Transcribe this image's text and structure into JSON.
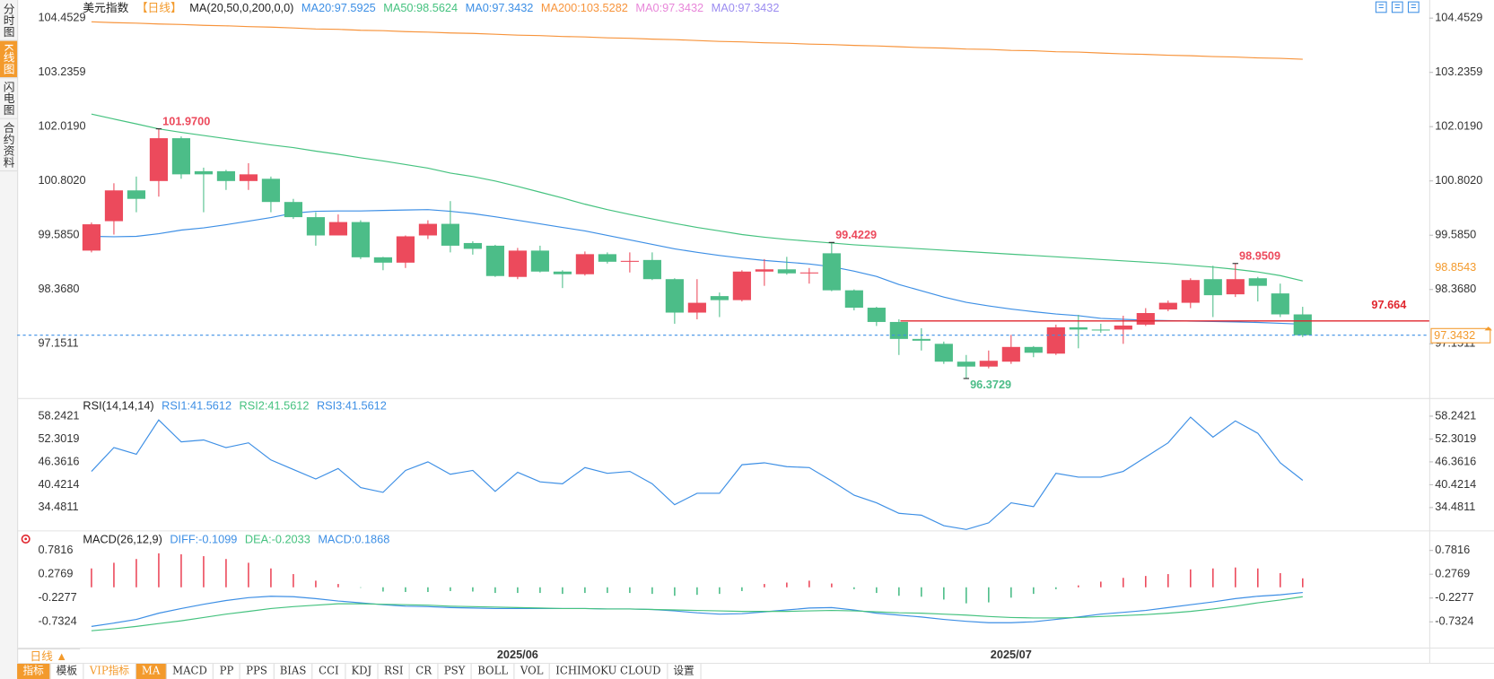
{
  "sidebar_tabs": [
    "分时图",
    "K线图",
    "闪电图",
    "合约资料"
  ],
  "period": "日线 ▲",
  "toolbar": [
    "指标",
    "模板",
    "VIP指标",
    "MA",
    "MACD",
    "PP",
    "PPS",
    "BIAS",
    "CCI",
    "KDJ",
    "RSI",
    "CR",
    "PSY",
    "BOLL",
    "VOL",
    "ICHIMOKU CLOUD",
    "设置"
  ],
  "chart_data": [
    {
      "type": "candlestick",
      "title": "美元指数",
      "period": "【日线】",
      "indicator": "MA(20,50,0,200,0,0)",
      "up_color": "#ec4a5c",
      "down_color": "#4cbd88",
      "categories": [
        null,
        null,
        null,
        null,
        null,
        null,
        null,
        null,
        null,
        null,
        null,
        null,
        null,
        null,
        null,
        null,
        null,
        null,
        null,
        "2025/06",
        null,
        null,
        null,
        null,
        null,
        null,
        null,
        null,
        null,
        null,
        null,
        null,
        null,
        null,
        null,
        null,
        null,
        null,
        null,
        null,
        null,
        "2025/07",
        null,
        null,
        null,
        null,
        null,
        null,
        null,
        null,
        null,
        null,
        null,
        null,
        null
      ],
      "ohlc": {
        "open": [
          99.24,
          99.9,
          100.59,
          100.8,
          101.76,
          101.02,
          101.02,
          100.8,
          100.85,
          100.33,
          99.99,
          99.58,
          99.88,
          99.09,
          98.97,
          99.58,
          99.84,
          99.41,
          99.35,
          98.65,
          99.24,
          98.77,
          98.71,
          99.16,
          98.99,
          99.03,
          98.6,
          97.85,
          98.22,
          98.13,
          98.77,
          98.82,
          98.73,
          99.18,
          98.35,
          97.96,
          97.64,
          97.26,
          97.15,
          96.75,
          96.64,
          96.75,
          97.08,
          96.93,
          97.52,
          97.47,
          97.47,
          97.58,
          97.92,
          98.07,
          98.6,
          98.26,
          98.62,
          98.28,
          97.81
        ],
        "high": [
          99.87,
          100.75,
          100.9,
          101.97,
          101.8,
          101.1,
          101.05,
          101.2,
          100.9,
          100.4,
          100.1,
          100.05,
          99.92,
          99.1,
          99.58,
          99.92,
          100.35,
          99.45,
          99.37,
          99.3,
          99.35,
          98.8,
          99.22,
          99.2,
          99.2,
          99.2,
          98.62,
          98.6,
          98.3,
          98.8,
          99.05,
          99.1,
          98.85,
          99.4229,
          98.37,
          97.98,
          97.7,
          97.5,
          97.2,
          96.9,
          97.0,
          97.35,
          97.1,
          97.58,
          97.8,
          97.6,
          97.78,
          97.95,
          98.12,
          98.62,
          98.9,
          98.9509,
          98.65,
          98.5,
          97.98
        ],
        "low": [
          99.2,
          99.6,
          100.1,
          100.45,
          100.85,
          100.1,
          100.6,
          100.6,
          100.1,
          99.95,
          99.35,
          99.58,
          99.05,
          98.8,
          98.85,
          99.5,
          99.2,
          99.15,
          98.65,
          98.6,
          98.75,
          98.4,
          98.68,
          98.95,
          98.75,
          98.58,
          97.6,
          97.7,
          97.75,
          98.1,
          98.45,
          98.7,
          98.5,
          98.33,
          97.9,
          97.55,
          96.9,
          97.0,
          96.7,
          96.3729,
          96.6,
          96.7,
          96.85,
          96.9,
          97.05,
          97.4,
          97.15,
          97.55,
          97.88,
          97.95,
          97.75,
          98.2,
          98.1,
          97.75,
          97.3
        ],
        "close": [
          99.83,
          100.59,
          100.4,
          101.76,
          100.95,
          100.95,
          100.8,
          100.95,
          100.33,
          99.99,
          99.58,
          99.88,
          99.09,
          98.97,
          99.56,
          99.84,
          99.35,
          99.28,
          98.67,
          99.24,
          98.77,
          98.71,
          99.16,
          98.99,
          99.01,
          98.6,
          97.85,
          98.07,
          98.13,
          98.77,
          98.82,
          98.73,
          98.75,
          98.35,
          97.96,
          97.64,
          97.26,
          97.22,
          96.75,
          96.64,
          96.77,
          97.08,
          96.95,
          97.52,
          97.47,
          97.45,
          97.56,
          97.84,
          98.07,
          98.58,
          98.24,
          98.6,
          98.45,
          97.81,
          97.3432
        ]
      },
      "legend": [
        {
          "label": "MA20:97.5925",
          "color": "#3d8fe5",
          "values": [
            99.56,
            99.55,
            99.56,
            99.62,
            99.7,
            99.75,
            99.82,
            99.9,
            99.98,
            100.08,
            100.12,
            100.13,
            100.13,
            100.14,
            100.15,
            100.16,
            100.12,
            100.07,
            100.0,
            99.92,
            99.84,
            99.76,
            99.68,
            99.58,
            99.48,
            99.38,
            99.28,
            99.2,
            99.13,
            99.07,
            99.02,
            98.98,
            98.94,
            98.88,
            98.78,
            98.66,
            98.48,
            98.34,
            98.2,
            98.08,
            98.0,
            97.93,
            97.87,
            97.82,
            97.78,
            97.72,
            97.7,
            97.68,
            97.67,
            97.66,
            97.65,
            97.64,
            97.63,
            97.61,
            97.59
          ]
        },
        {
          "label": "MA50:98.5624",
          "color": "#45c27f",
          "values": [
            102.3,
            102.19,
            102.08,
            101.97,
            101.89,
            101.82,
            101.75,
            101.68,
            101.61,
            101.55,
            101.47,
            101.4,
            101.32,
            101.25,
            101.17,
            101.09,
            100.98,
            100.9,
            100.8,
            100.68,
            100.55,
            100.42,
            100.28,
            100.16,
            100.05,
            99.95,
            99.85,
            99.76,
            99.68,
            99.6,
            99.54,
            99.49,
            99.45,
            99.41,
            99.37,
            99.34,
            99.31,
            99.28,
            99.25,
            99.22,
            99.19,
            99.16,
            99.13,
            99.1,
            99.07,
            99.04,
            99.01,
            98.98,
            98.95,
            98.91,
            98.87,
            98.82,
            98.76,
            98.68,
            98.56
          ]
        },
        {
          "label": "MA0:97.3432",
          "color": "#3d8fe5"
        },
        {
          "label": "MA200:103.5282",
          "color": "#f7943c",
          "values": [
            104.37,
            104.35,
            104.34,
            104.32,
            104.31,
            104.29,
            104.28,
            104.26,
            104.25,
            104.23,
            104.21,
            104.2,
            104.18,
            104.17,
            104.15,
            104.14,
            104.12,
            104.11,
            104.09,
            104.07,
            104.06,
            104.04,
            104.03,
            104.01,
            104.0,
            103.98,
            103.97,
            103.95,
            103.93,
            103.92,
            103.9,
            103.89,
            103.87,
            103.86,
            103.84,
            103.83,
            103.81,
            103.79,
            103.78,
            103.76,
            103.75,
            103.73,
            103.72,
            103.7,
            103.69,
            103.67,
            103.65,
            103.64,
            103.62,
            103.61,
            103.59,
            103.58,
            103.56,
            103.55,
            103.53
          ]
        },
        {
          "label": "MA0:97.3432",
          "color": "#e887d9"
        },
        {
          "label": "MA0:97.3432",
          "color": "#9b8cf0"
        }
      ],
      "annotations": [
        {
          "value": 101.97,
          "label": "101.9700"
        },
        {
          "value": 99.4229,
          "label": "99.4229"
        },
        {
          "value": 98.9509,
          "label": "98.9509"
        },
        {
          "value": 96.3729,
          "label": "96.3729"
        }
      ],
      "level_line": {
        "value": 97.664,
        "color": "#e0262e"
      },
      "last_price": {
        "value": 97.3432,
        "color": "#3d8fe5"
      },
      "right_marker": {
        "value": 98.8543,
        "label": "98.8543",
        "color": "#f39a2c"
      },
      "ylim": [
        95.934,
        104.645
      ],
      "yticks": [
        104.4529,
        103.2359,
        {
          "value": 102.019,
          "label": "102.0190"
        },
        {
          "value": 100.802,
          "label": "100.8020"
        },
        {
          "value": 99.585,
          "label": "99.5850"
        },
        {
          "value": 98.368,
          "label": "98.3680"
        },
        97.1511
      ]
    },
    {
      "type": "line",
      "title": "RSI(14,14,14)",
      "legend": [
        {
          "label": "RSI1:41.5612",
          "color": "#3d8fe5",
          "values": [
            43.88,
            50.07,
            48.34,
            57.25,
            51.56,
            52.05,
            50.07,
            51.31,
            46.86,
            44.38,
            41.9,
            44.63,
            39.68,
            38.44,
            44.13,
            46.36,
            43.14,
            44.13,
            38.69,
            43.64,
            41.16,
            40.67,
            44.87,
            43.39,
            43.88,
            40.67,
            35.22,
            38.19,
            38.19,
            45.62,
            46.11,
            45.12,
            44.87,
            41.41,
            37.7,
            35.72,
            32.99,
            32.5,
            29.78,
            28.79,
            30.52,
            35.72,
            34.73,
            43.39,
            42.4,
            42.4,
            43.88,
            47.6,
            51.31,
            58.0,
            52.79,
            57.0,
            53.78,
            46.11,
            41.56
          ]
        },
        {
          "label": "RSI2:41.5612",
          "color": "#45c27f"
        },
        {
          "label": "RSI3:41.5612",
          "color": "#3d8fe5"
        }
      ],
      "ylim": [
        28.54,
        62.45
      ],
      "yticks": [
        58.2421,
        52.3019,
        46.3616,
        40.4214,
        34.4811
      ]
    },
    {
      "type": "macd",
      "title": "MACD(26,12,9)",
      "up_color": "#ec4a5c",
      "down_color": "#4cbd88",
      "legend": [
        {
          "label": "DIFF:-0.1099",
          "color": "#3d8fe5",
          "values": [
            -0.83,
            -0.76,
            -0.68,
            -0.55,
            -0.45,
            -0.36,
            -0.28,
            -0.22,
            -0.19,
            -0.2,
            -0.24,
            -0.29,
            -0.33,
            -0.37,
            -0.4,
            -0.41,
            -0.43,
            -0.44,
            -0.45,
            -0.45,
            -0.45,
            -0.45,
            -0.45,
            -0.46,
            -0.46,
            -0.47,
            -0.5,
            -0.54,
            -0.57,
            -0.56,
            -0.52,
            -0.48,
            -0.44,
            -0.43,
            -0.48,
            -0.55,
            -0.59,
            -0.63,
            -0.68,
            -0.72,
            -0.75,
            -0.75,
            -0.73,
            -0.68,
            -0.63,
            -0.57,
            -0.53,
            -0.49,
            -0.43,
            -0.37,
            -0.31,
            -0.24,
            -0.19,
            -0.16,
            -0.11
          ]
        },
        {
          "label": "DEA:-0.2033",
          "color": "#45c27f",
          "values": [
            -0.92,
            -0.88,
            -0.83,
            -0.77,
            -0.71,
            -0.64,
            -0.57,
            -0.51,
            -0.45,
            -0.41,
            -0.38,
            -0.35,
            -0.35,
            -0.36,
            -0.37,
            -0.38,
            -0.4,
            -0.41,
            -0.42,
            -0.43,
            -0.44,
            -0.45,
            -0.45,
            -0.46,
            -0.46,
            -0.47,
            -0.48,
            -0.49,
            -0.5,
            -0.51,
            -0.51,
            -0.51,
            -0.5,
            -0.49,
            -0.5,
            -0.52,
            -0.54,
            -0.55,
            -0.57,
            -0.59,
            -0.62,
            -0.64,
            -0.65,
            -0.65,
            -0.64,
            -0.62,
            -0.6,
            -0.58,
            -0.55,
            -0.51,
            -0.46,
            -0.4,
            -0.33,
            -0.27,
            -0.2
          ]
        },
        {
          "label": "MACD:0.1868",
          "color": "#3d8fe5"
        }
      ],
      "histogram": [
        0.4,
        0.52,
        0.6,
        0.72,
        0.7,
        0.66,
        0.6,
        0.52,
        0.4,
        0.28,
        0.14,
        0.07,
        -0.01,
        -0.09,
        -0.1,
        -0.1,
        -0.08,
        -0.09,
        -0.12,
        -0.12,
        -0.12,
        -0.14,
        -0.12,
        -0.12,
        -0.12,
        -0.14,
        -0.18,
        -0.16,
        -0.14,
        -0.08,
        0.07,
        0.1,
        0.14,
        0.08,
        -0.04,
        -0.12,
        -0.18,
        -0.2,
        -0.26,
        -0.34,
        -0.32,
        -0.22,
        -0.14,
        -0.04,
        0.04,
        0.12,
        0.2,
        0.24,
        0.28,
        0.38,
        0.4,
        0.42,
        0.4,
        0.3,
        0.19
      ],
      "ylim": [
        -1.278,
        1.145
      ],
      "yticks": [
        0.7816,
        0.2769,
        -0.2277,
        -0.7324
      ]
    }
  ]
}
